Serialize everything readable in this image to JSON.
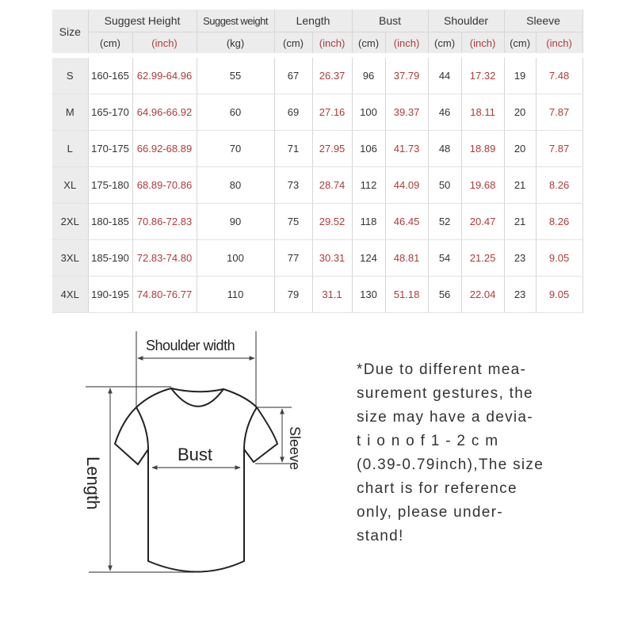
{
  "table": {
    "headers": {
      "size": "Size",
      "height": "Suggest Height",
      "weight": "Suggest weight",
      "length": "Length",
      "bust": "Bust",
      "shoulder": "Shoulder",
      "sleeve": "Sleeve"
    },
    "units": {
      "cm": "(cm)",
      "inch": "(inch)",
      "kg": "(kg)"
    },
    "rows": [
      [
        "S",
        "160-165",
        "62.99-64.96",
        "55",
        "67",
        "26.37",
        "96",
        "37.79",
        "44",
        "17.32",
        "19",
        "7.48"
      ],
      [
        "M",
        "165-170",
        "64.96-66.92",
        "60",
        "69",
        "27.16",
        "100",
        "39.37",
        "46",
        "18.11",
        "20",
        "7.87"
      ],
      [
        "L",
        "170-175",
        "66.92-68.89",
        "70",
        "71",
        "27.95",
        "106",
        "41.73",
        "48",
        "18.89",
        "20",
        "7.87"
      ],
      [
        "XL",
        "175-180",
        "68.89-70.86",
        "80",
        "73",
        "28.74",
        "112",
        "44.09",
        "50",
        "19.68",
        "21",
        "8.26"
      ],
      [
        "2XL",
        "180-185",
        "70.86-72.83",
        "90",
        "75",
        "29.52",
        "118",
        "46.45",
        "52",
        "20.47",
        "21",
        "8.26"
      ],
      [
        "3XL",
        "185-190",
        "72.83-74.80",
        "100",
        "77",
        "30.31",
        "124",
        "48.81",
        "54",
        "21.25",
        "23",
        "9.05"
      ],
      [
        "4XL",
        "190-195",
        "74.80-76.77",
        "110",
        "79",
        "31.1",
        "130",
        "51.18",
        "56",
        "22.04",
        "23",
        "9.05"
      ]
    ]
  },
  "diagram": {
    "shoulder": "Shoulder width",
    "bust": "Bust",
    "sleeve": "Sleeve",
    "length": "Length"
  },
  "note": "*Due to different mea-\nsurement gestures, the\nsize may have a devia-\nt i o n   o f   1 - 2 c m\n(0.39-0.79inch),The size\nchart is for reference\nonly, please under-\nstand!",
  "colors": {
    "inch_text": "#b03a3a",
    "header_bg": "#ececec"
  }
}
